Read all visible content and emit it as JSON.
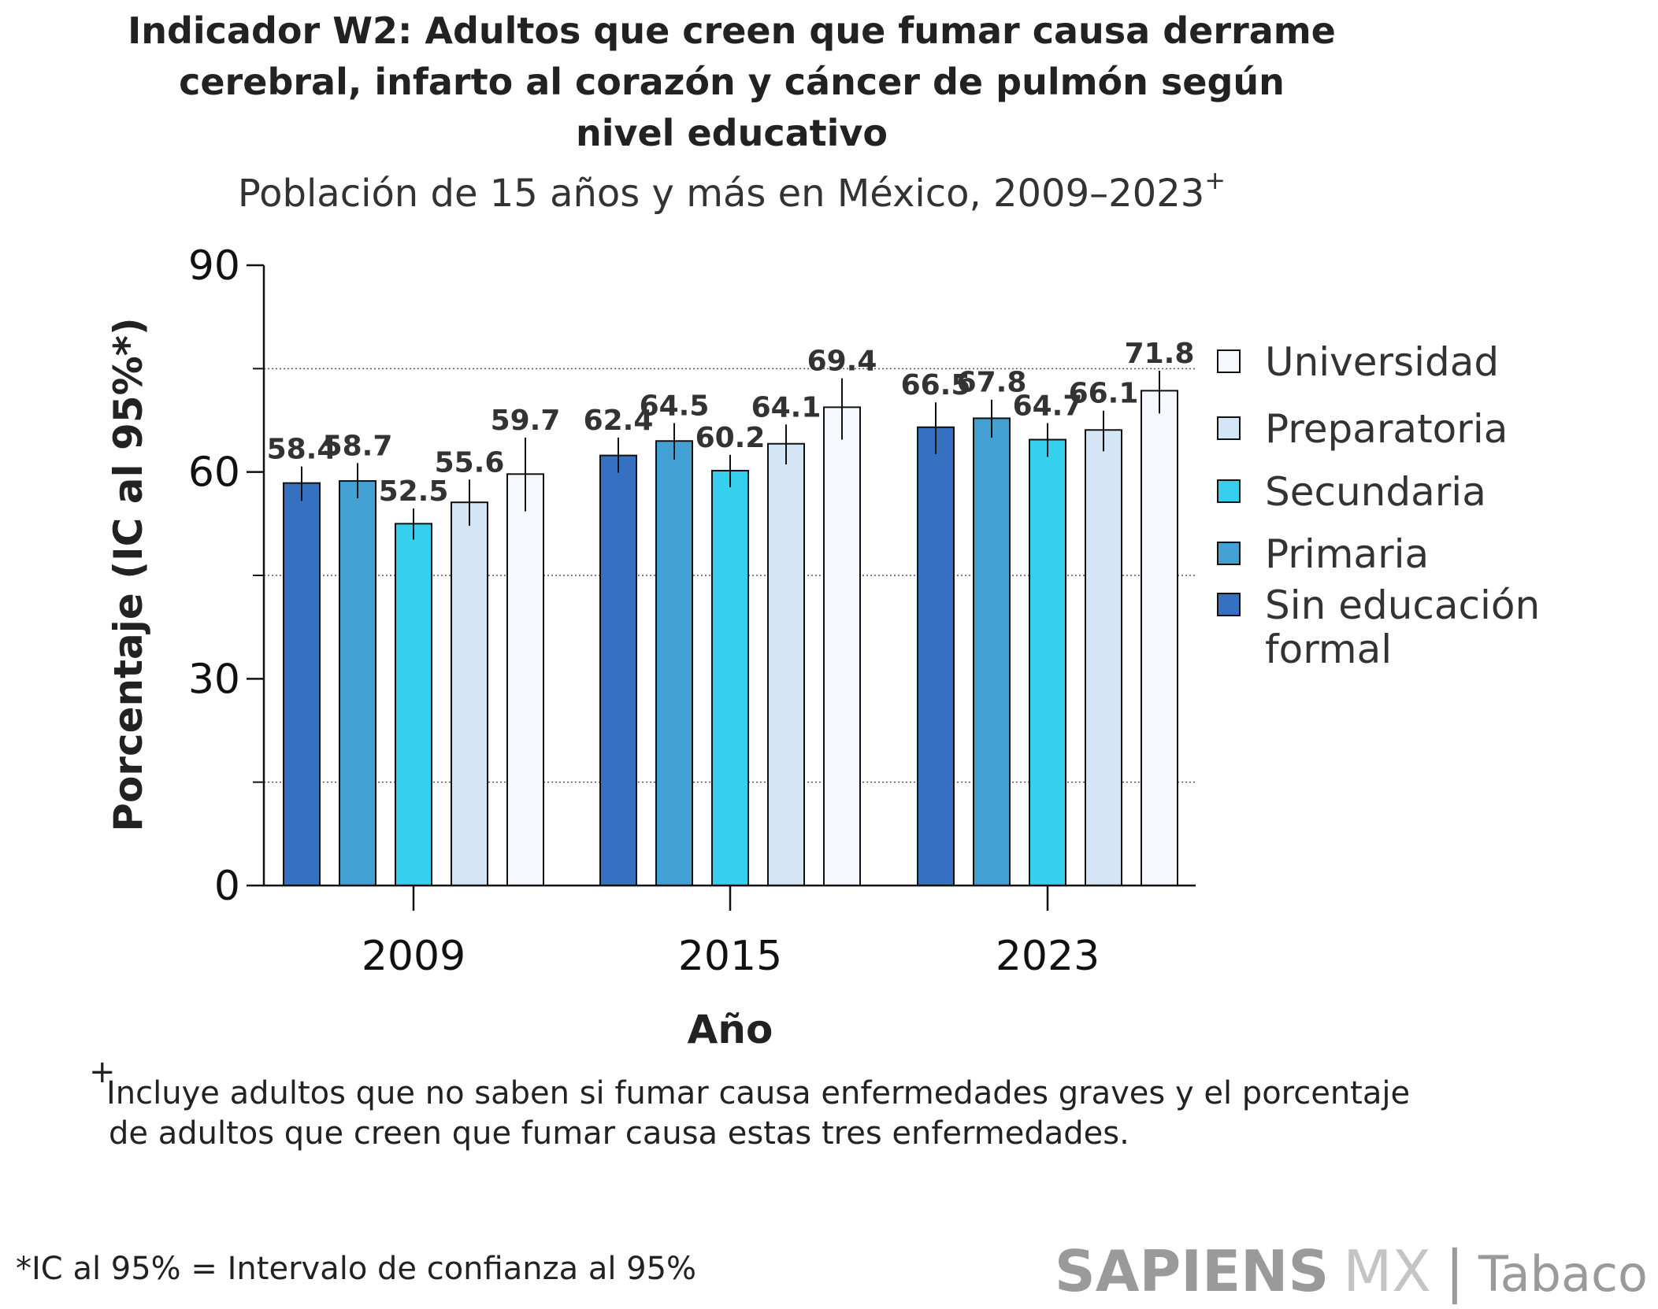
{
  "chart_data": {
    "type": "bar",
    "title": "Indicador W2: Adultos que creen que fumar causa derrame cerebral, infarto al corazón y cáncer de pulmón según nivel educativo",
    "title_lines": [
      "Indicador W2: Adultos que creen que fumar causa derrame",
      "cerebral, infarto al corazón y cáncer de pulmón según",
      "nivel educativo"
    ],
    "subtitle": "Población de 15 años y más en México, 2009–2023",
    "subtitle_mark": "+",
    "xlabel": "Año",
    "ylabel": "Porcentaje (IC al 95%*)",
    "ylim": [
      0,
      90
    ],
    "yticks": [
      0,
      30,
      60,
      90
    ],
    "minor_gridlines": [
      15,
      45,
      75
    ],
    "grid": "dotted horizontal at minor ticks",
    "legend_position": "right",
    "categories": [
      "2009",
      "2015",
      "2023"
    ],
    "series": [
      {
        "name": "Sin educación formal",
        "name_lines": [
          "Sin educación",
          "formal"
        ],
        "color": "#3670C0",
        "values": [
          58.4,
          62.4,
          66.5
        ],
        "ci_low": [
          55.8,
          59.9,
          62.6
        ],
        "ci_high": [
          60.8,
          65.0,
          70.1
        ]
      },
      {
        "name": "Primaria",
        "name_lines": [
          "Primaria"
        ],
        "color": "#42A0D2",
        "values": [
          58.7,
          64.5,
          67.8
        ],
        "ci_low": [
          56.2,
          61.8,
          65.0
        ],
        "ci_high": [
          61.3,
          67.1,
          70.5
        ]
      },
      {
        "name": "Secundaria",
        "name_lines": [
          "Secundaria"
        ],
        "color": "#36CFEE",
        "values": [
          52.5,
          60.2,
          64.7
        ],
        "ci_low": [
          50.2,
          57.8,
          62.2
        ],
        "ci_high": [
          54.7,
          62.5,
          67.1
        ]
      },
      {
        "name": "Preparatoria",
        "name_lines": [
          "Preparatoria"
        ],
        "color": "#D4E6F5",
        "values": [
          55.6,
          64.1,
          66.1
        ],
        "ci_low": [
          52.2,
          61.1,
          63.0
        ],
        "ci_high": [
          58.9,
          66.9,
          68.9
        ]
      },
      {
        "name": "Universidad",
        "name_lines": [
          "Universidad"
        ],
        "color": "#F5F9FD",
        "values": [
          59.7,
          69.4,
          71.8
        ],
        "ci_low": [
          54.3,
          64.7,
          68.5
        ],
        "ci_high": [
          65.0,
          73.6,
          74.7
        ]
      }
    ],
    "legend_order": [
      "Universidad",
      "Preparatoria",
      "Secundaria",
      "Primaria",
      "Sin educación formal"
    ]
  },
  "footnote": {
    "mark": "+",
    "lines": [
      "Incluye adultos que no saben si fumar causa enfermedades graves y el porcentaje",
      "de adultos que creen que fumar causa estas tres enfermedades."
    ]
  },
  "ci_note": "*IC al 95% = Intervalo de confianza al 95%",
  "logo": {
    "bold": "SAPIENS",
    "light": "MX",
    "sep": "|",
    "section": "Tabaco"
  }
}
